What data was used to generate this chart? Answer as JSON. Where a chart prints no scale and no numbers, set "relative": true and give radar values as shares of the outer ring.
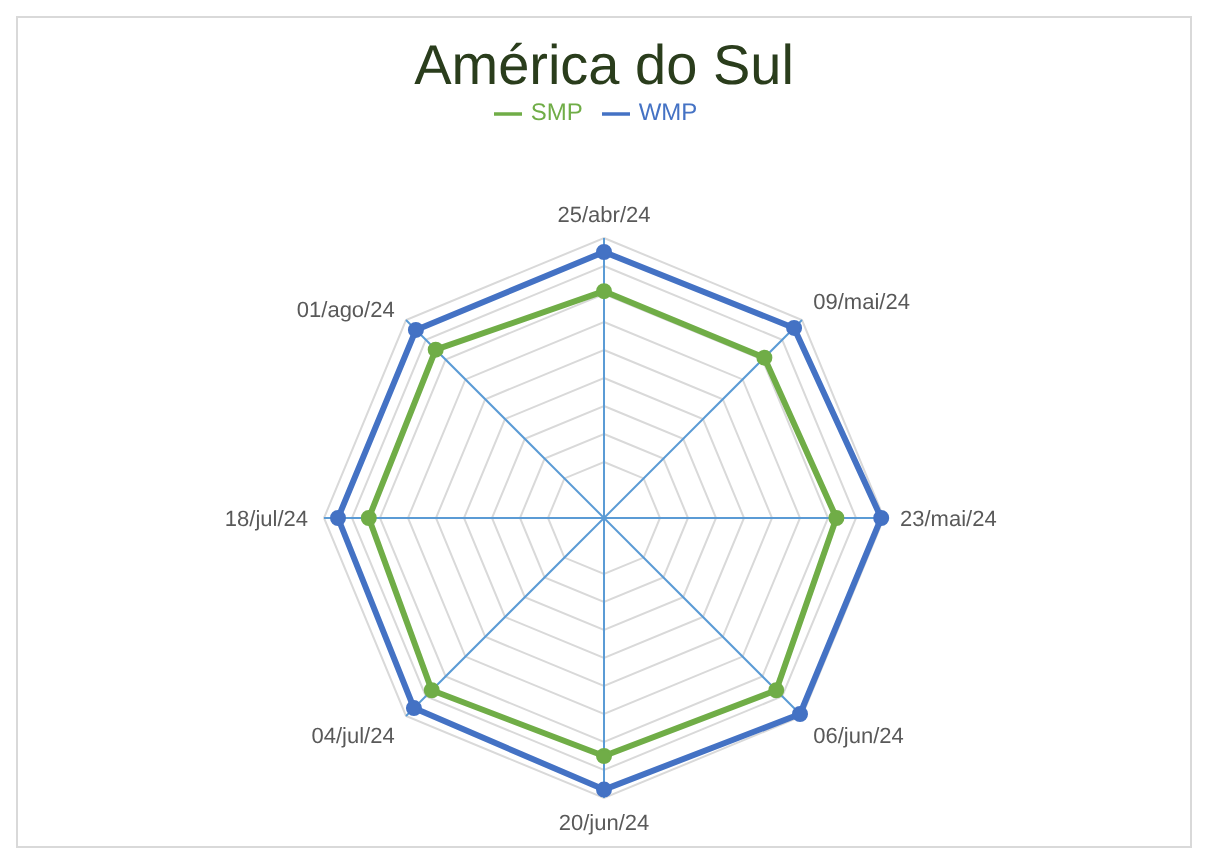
{
  "chart_data": {
    "type": "radar",
    "title": "América do Sul",
    "relative": true,
    "legend": "top",
    "marker": "circle",
    "categories": [
      "25/abr/24",
      "09/mai/24",
      "23/mai/24",
      "06/jun/24",
      "20/jun/24",
      "04/jul/24",
      "18/jul/24",
      "01/ago/24"
    ],
    "series": [
      {
        "name": "SMP",
        "color": "#70ad47",
        "values": [
          0.81,
          0.81,
          0.83,
          0.87,
          0.85,
          0.87,
          0.84,
          0.85
        ]
      },
      {
        "name": "WMP",
        "color": "#4472c4",
        "values": [
          0.95,
          0.96,
          0.99,
          0.99,
          0.97,
          0.96,
          0.95,
          0.95
        ]
      }
    ]
  }
}
